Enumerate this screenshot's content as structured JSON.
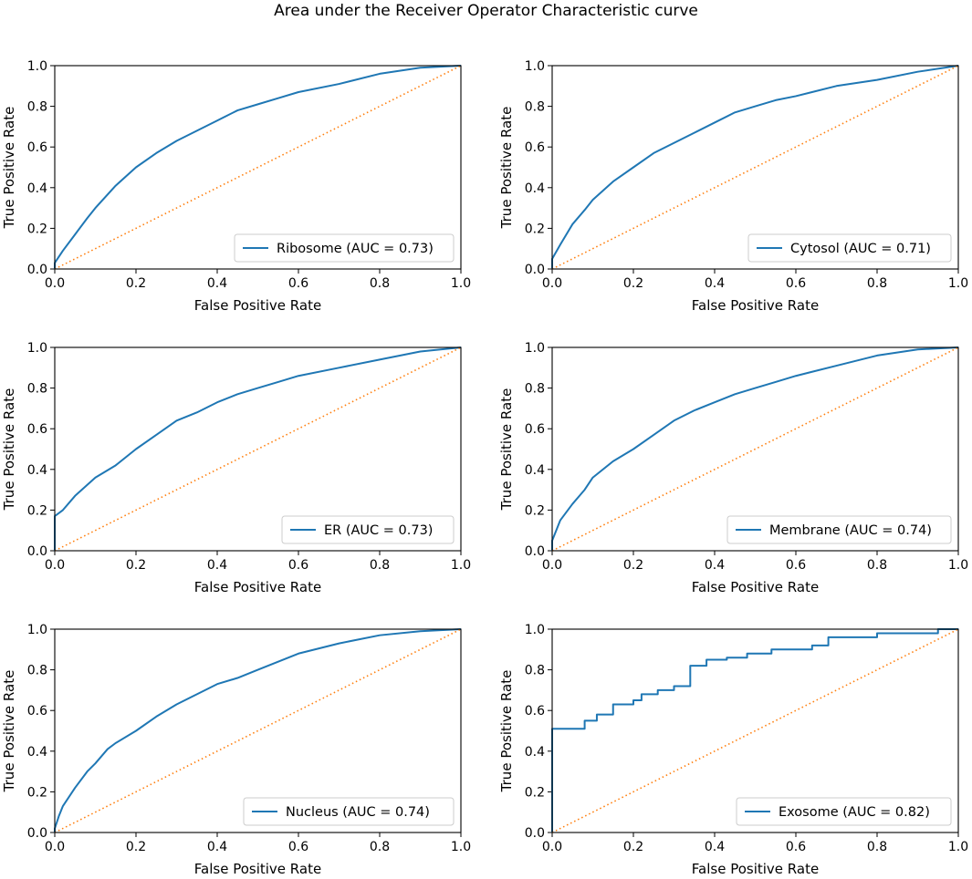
{
  "figure_title": "Area under the Receiver Operator Characteristic curve",
  "colors": {
    "roc": "#1f77b4",
    "diagonal": "#ff7f0e",
    "axis": "#000000",
    "legend_border": "#cccccc"
  },
  "chart_data": [
    {
      "type": "line",
      "xlabel": "False Positive Rate",
      "ylabel": "True Positive Rate",
      "xlim": [
        0,
        1
      ],
      "ylim": [
        0,
        1
      ],
      "xticks": [
        "0.0",
        "0.2",
        "0.4",
        "0.6",
        "0.8",
        "1.0"
      ],
      "yticks": [
        "0.0",
        "0.2",
        "0.4",
        "0.6",
        "0.8",
        "1.0"
      ],
      "series": [
        {
          "name": "Ribosome (AUC = 0.73)",
          "style": "solid",
          "auc": 0.73,
          "x": [
            0,
            0,
            0.02,
            0.05,
            0.08,
            0.1,
            0.15,
            0.2,
            0.25,
            0.3,
            0.35,
            0.4,
            0.45,
            0.5,
            0.55,
            0.6,
            0.7,
            0.8,
            0.9,
            1.0
          ],
          "y": [
            0,
            0.03,
            0.09,
            0.17,
            0.25,
            0.3,
            0.41,
            0.5,
            0.57,
            0.63,
            0.68,
            0.73,
            0.78,
            0.81,
            0.84,
            0.87,
            0.91,
            0.96,
            0.99,
            1.0
          ]
        },
        {
          "name": "chance",
          "style": "dotted",
          "x": [
            0,
            1
          ],
          "y": [
            0,
            1
          ]
        }
      ]
    },
    {
      "type": "line",
      "xlabel": "False Positive Rate",
      "ylabel": "True Positive Rate",
      "xlim": [
        0,
        1
      ],
      "ylim": [
        0,
        1
      ],
      "xticks": [
        "0.0",
        "0.2",
        "0.4",
        "0.6",
        "0.8",
        "1.0"
      ],
      "yticks": [
        "0.0",
        "0.2",
        "0.4",
        "0.6",
        "0.8",
        "1.0"
      ],
      "series": [
        {
          "name": "Cytosol (AUC = 0.71)",
          "style": "solid",
          "auc": 0.71,
          "x": [
            0,
            0,
            0.02,
            0.05,
            0.08,
            0.1,
            0.15,
            0.2,
            0.25,
            0.3,
            0.35,
            0.4,
            0.45,
            0.5,
            0.55,
            0.6,
            0.7,
            0.8,
            0.9,
            1.0
          ],
          "y": [
            0,
            0.05,
            0.12,
            0.22,
            0.29,
            0.34,
            0.43,
            0.5,
            0.57,
            0.62,
            0.67,
            0.72,
            0.77,
            0.8,
            0.83,
            0.85,
            0.9,
            0.93,
            0.97,
            1.0
          ]
        },
        {
          "name": "chance",
          "style": "dotted",
          "x": [
            0,
            1
          ],
          "y": [
            0,
            1
          ]
        }
      ]
    },
    {
      "type": "line",
      "xlabel": "False Positive Rate",
      "ylabel": "True Positive Rate",
      "xlim": [
        0,
        1
      ],
      "ylim": [
        0,
        1
      ],
      "xticks": [
        "0.0",
        "0.2",
        "0.4",
        "0.6",
        "0.8",
        "1.0"
      ],
      "yticks": [
        "0.0",
        "0.2",
        "0.4",
        "0.6",
        "0.8",
        "1.0"
      ],
      "series": [
        {
          "name": "ER (AUC = 0.73)",
          "style": "solid",
          "auc": 0.73,
          "x": [
            0,
            0,
            0.02,
            0.05,
            0.1,
            0.15,
            0.2,
            0.25,
            0.3,
            0.35,
            0.4,
            0.45,
            0.5,
            0.55,
            0.6,
            0.7,
            0.8,
            0.9,
            1.0
          ],
          "y": [
            0,
            0.17,
            0.2,
            0.27,
            0.36,
            0.42,
            0.5,
            0.57,
            0.64,
            0.68,
            0.73,
            0.77,
            0.8,
            0.83,
            0.86,
            0.9,
            0.94,
            0.98,
            1.0
          ]
        },
        {
          "name": "chance",
          "style": "dotted",
          "x": [
            0,
            1
          ],
          "y": [
            0,
            1
          ]
        }
      ]
    },
    {
      "type": "line",
      "xlabel": "False Positive Rate",
      "ylabel": "True Positive Rate",
      "xlim": [
        0,
        1
      ],
      "ylim": [
        0,
        1
      ],
      "xticks": [
        "0.0",
        "0.2",
        "0.4",
        "0.6",
        "0.8",
        "1.0"
      ],
      "yticks": [
        "0.0",
        "0.2",
        "0.4",
        "0.6",
        "0.8",
        "1.0"
      ],
      "series": [
        {
          "name": "Membrane (AUC = 0.74)",
          "style": "solid",
          "auc": 0.74,
          "x": [
            0,
            0,
            0.01,
            0.02,
            0.05,
            0.08,
            0.1,
            0.15,
            0.2,
            0.25,
            0.3,
            0.35,
            0.4,
            0.45,
            0.5,
            0.55,
            0.6,
            0.7,
            0.8,
            0.9,
            1.0
          ],
          "y": [
            0,
            0.05,
            0.1,
            0.15,
            0.23,
            0.3,
            0.36,
            0.44,
            0.5,
            0.57,
            0.64,
            0.69,
            0.73,
            0.77,
            0.8,
            0.83,
            0.86,
            0.91,
            0.96,
            0.99,
            1.0
          ]
        },
        {
          "name": "chance",
          "style": "dotted",
          "x": [
            0,
            1
          ],
          "y": [
            0,
            1
          ]
        }
      ]
    },
    {
      "type": "line",
      "xlabel": "False Positive Rate",
      "ylabel": "True Positive Rate",
      "xlim": [
        0,
        1
      ],
      "ylim": [
        0,
        1
      ],
      "xticks": [
        "0.0",
        "0.2",
        "0.4",
        "0.6",
        "0.8",
        "1.0"
      ],
      "yticks": [
        "0.0",
        "0.2",
        "0.4",
        "0.6",
        "0.8",
        "1.0"
      ],
      "series": [
        {
          "name": "Nucleus (AUC = 0.74)",
          "style": "solid",
          "auc": 0.74,
          "x": [
            0,
            0,
            0.01,
            0.02,
            0.05,
            0.08,
            0.1,
            0.13,
            0.15,
            0.2,
            0.25,
            0.3,
            0.35,
            0.4,
            0.45,
            0.5,
            0.55,
            0.6,
            0.7,
            0.8,
            0.9,
            1.0
          ],
          "y": [
            0,
            0.02,
            0.08,
            0.13,
            0.22,
            0.3,
            0.34,
            0.41,
            0.44,
            0.5,
            0.57,
            0.63,
            0.68,
            0.73,
            0.76,
            0.8,
            0.84,
            0.88,
            0.93,
            0.97,
            0.99,
            1.0
          ]
        },
        {
          "name": "chance",
          "style": "dotted",
          "x": [
            0,
            1
          ],
          "y": [
            0,
            1
          ]
        }
      ]
    },
    {
      "type": "line",
      "xlabel": "False Positive Rate",
      "ylabel": "True Positive Rate",
      "xlim": [
        0,
        1
      ],
      "ylim": [
        0,
        1
      ],
      "xticks": [
        "0.0",
        "0.2",
        "0.4",
        "0.6",
        "0.8",
        "1.0"
      ],
      "yticks": [
        "0.0",
        "0.2",
        "0.4",
        "0.6",
        "0.8",
        "1.0"
      ],
      "series": [
        {
          "name": "Exosome (AUC = 0.82)",
          "style": "solid",
          "auc": 0.82,
          "x": [
            0,
            0,
            0.08,
            0.08,
            0.11,
            0.11,
            0.15,
            0.15,
            0.2,
            0.2,
            0.22,
            0.22,
            0.26,
            0.26,
            0.3,
            0.3,
            0.34,
            0.34,
            0.38,
            0.38,
            0.43,
            0.43,
            0.48,
            0.48,
            0.54,
            0.54,
            0.64,
            0.64,
            0.68,
            0.68,
            0.8,
            0.8,
            0.95,
            0.95,
            1.0
          ],
          "y": [
            0,
            0.51,
            0.51,
            0.55,
            0.55,
            0.58,
            0.58,
            0.63,
            0.63,
            0.65,
            0.65,
            0.68,
            0.68,
            0.7,
            0.7,
            0.72,
            0.72,
            0.82,
            0.82,
            0.85,
            0.85,
            0.86,
            0.86,
            0.88,
            0.88,
            0.9,
            0.9,
            0.92,
            0.92,
            0.96,
            0.96,
            0.98,
            0.98,
            1.0,
            1.0
          ]
        },
        {
          "name": "chance",
          "style": "dotted",
          "x": [
            0,
            1
          ],
          "y": [
            0,
            1
          ]
        }
      ]
    }
  ]
}
